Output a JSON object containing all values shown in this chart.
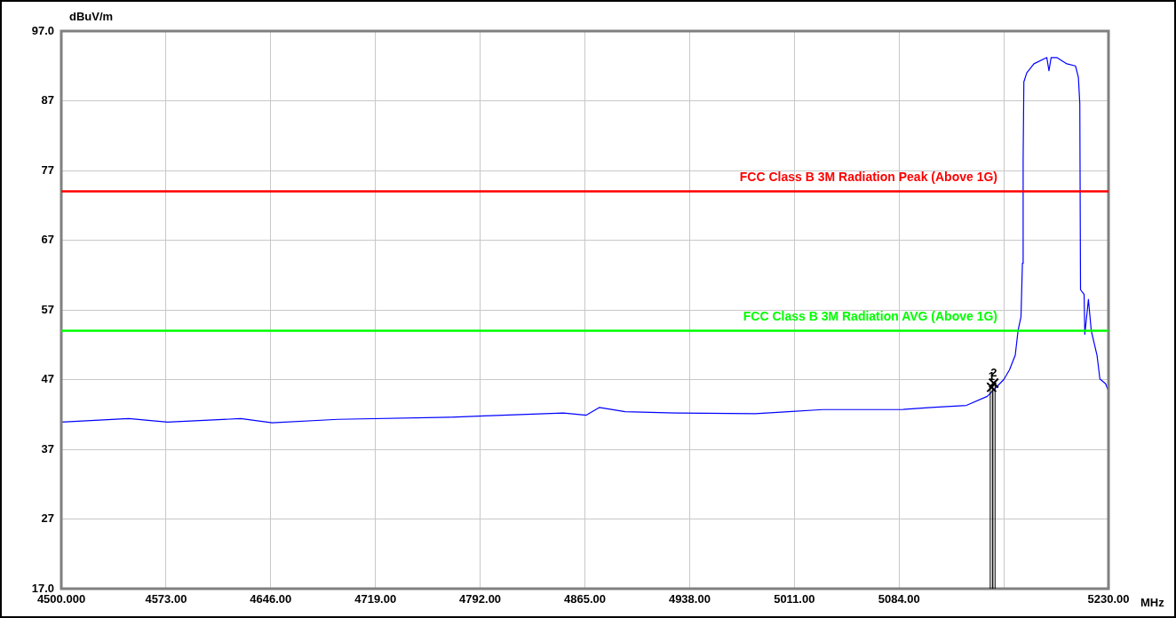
{
  "chart_data": {
    "type": "line",
    "xlabel": "MHz",
    "ylabel": "dBuV/m",
    "xlim": [
      4500,
      5230
    ],
    "xticks": [
      {
        "value": 4500,
        "label": "4500.000"
      },
      {
        "value": 4573,
        "label": "4573.00"
      },
      {
        "value": 4646,
        "label": "4646.00"
      },
      {
        "value": 4719,
        "label": "4719.00"
      },
      {
        "value": 4792,
        "label": "4792.00"
      },
      {
        "value": 4865,
        "label": "4865.00"
      },
      {
        "value": 4938,
        "label": "4938.00"
      },
      {
        "value": 5011,
        "label": "5011.00"
      },
      {
        "value": 5084,
        "label": "5084.00"
      },
      {
        "value": 5157,
        "label": null
      },
      {
        "value": 5230,
        "label": "5230.00"
      }
    ],
    "ylim": [
      17,
      97
    ],
    "yticks": [
      {
        "value": 17,
        "label": "17.0"
      },
      27,
      37,
      47,
      57,
      67,
      77,
      87,
      {
        "value": 97,
        "label": "97.0"
      }
    ],
    "grid": true,
    "legend": false,
    "marker": "none",
    "line_style": "solid",
    "series": [
      {
        "color": "#0000ff",
        "x": [
          4500,
          4547,
          4574,
          4625,
          4647,
          4693,
          4771,
          4795,
          4850,
          4866,
          4875,
          4893,
          4928,
          4984,
          5007,
          5031,
          5086,
          5106.6,
          5131,
          5145.5,
          5157,
          5161,
          5165,
          5167,
          5169,
          5170,
          5170.5,
          5171,
          5173,
          5178,
          5187,
          5188.5,
          5190,
          5194,
          5201,
          5207,
          5209,
          5210,
          5210.5,
          5213,
          5213.5,
          5216,
          5218,
          5222,
          5224,
          5228,
          5229.5
        ],
        "values": [
          40.9,
          41.4,
          40.9,
          41.4,
          40.8,
          41.3,
          41.6,
          41.8,
          42.2,
          41.9,
          43.0,
          42.4,
          42.2,
          42.1,
          42.4,
          42.7,
          42.7,
          43.0,
          43.3,
          44.6,
          47.0,
          48.4,
          50.5,
          54.1,
          56.0,
          63.7,
          78.6,
          89.7,
          91.0,
          92.3,
          93.2,
          91.3,
          93.2,
          93.2,
          92.3,
          92.0,
          90.4,
          86.6,
          59.9,
          59.2,
          53.5,
          58.5,
          54.0,
          50.5,
          47.1,
          46.4,
          45.6
        ]
      }
    ],
    "ref_lines": [
      {
        "axis": "y",
        "value": 74,
        "label": "FCC Class B 3M Radiation Peak (Above 1G)",
        "color": "#ff0000"
      },
      {
        "axis": "y",
        "value": 54,
        "label": "FCC Class B 3M Radiation AVG (Above 1G)",
        "color": "#00ff00"
      }
    ],
    "annotations": [
      {
        "text": "1",
        "x": 5148.5,
        "y": 45.9
      },
      {
        "text": "2",
        "x": 5150,
        "y": 46.5
      }
    ]
  }
}
